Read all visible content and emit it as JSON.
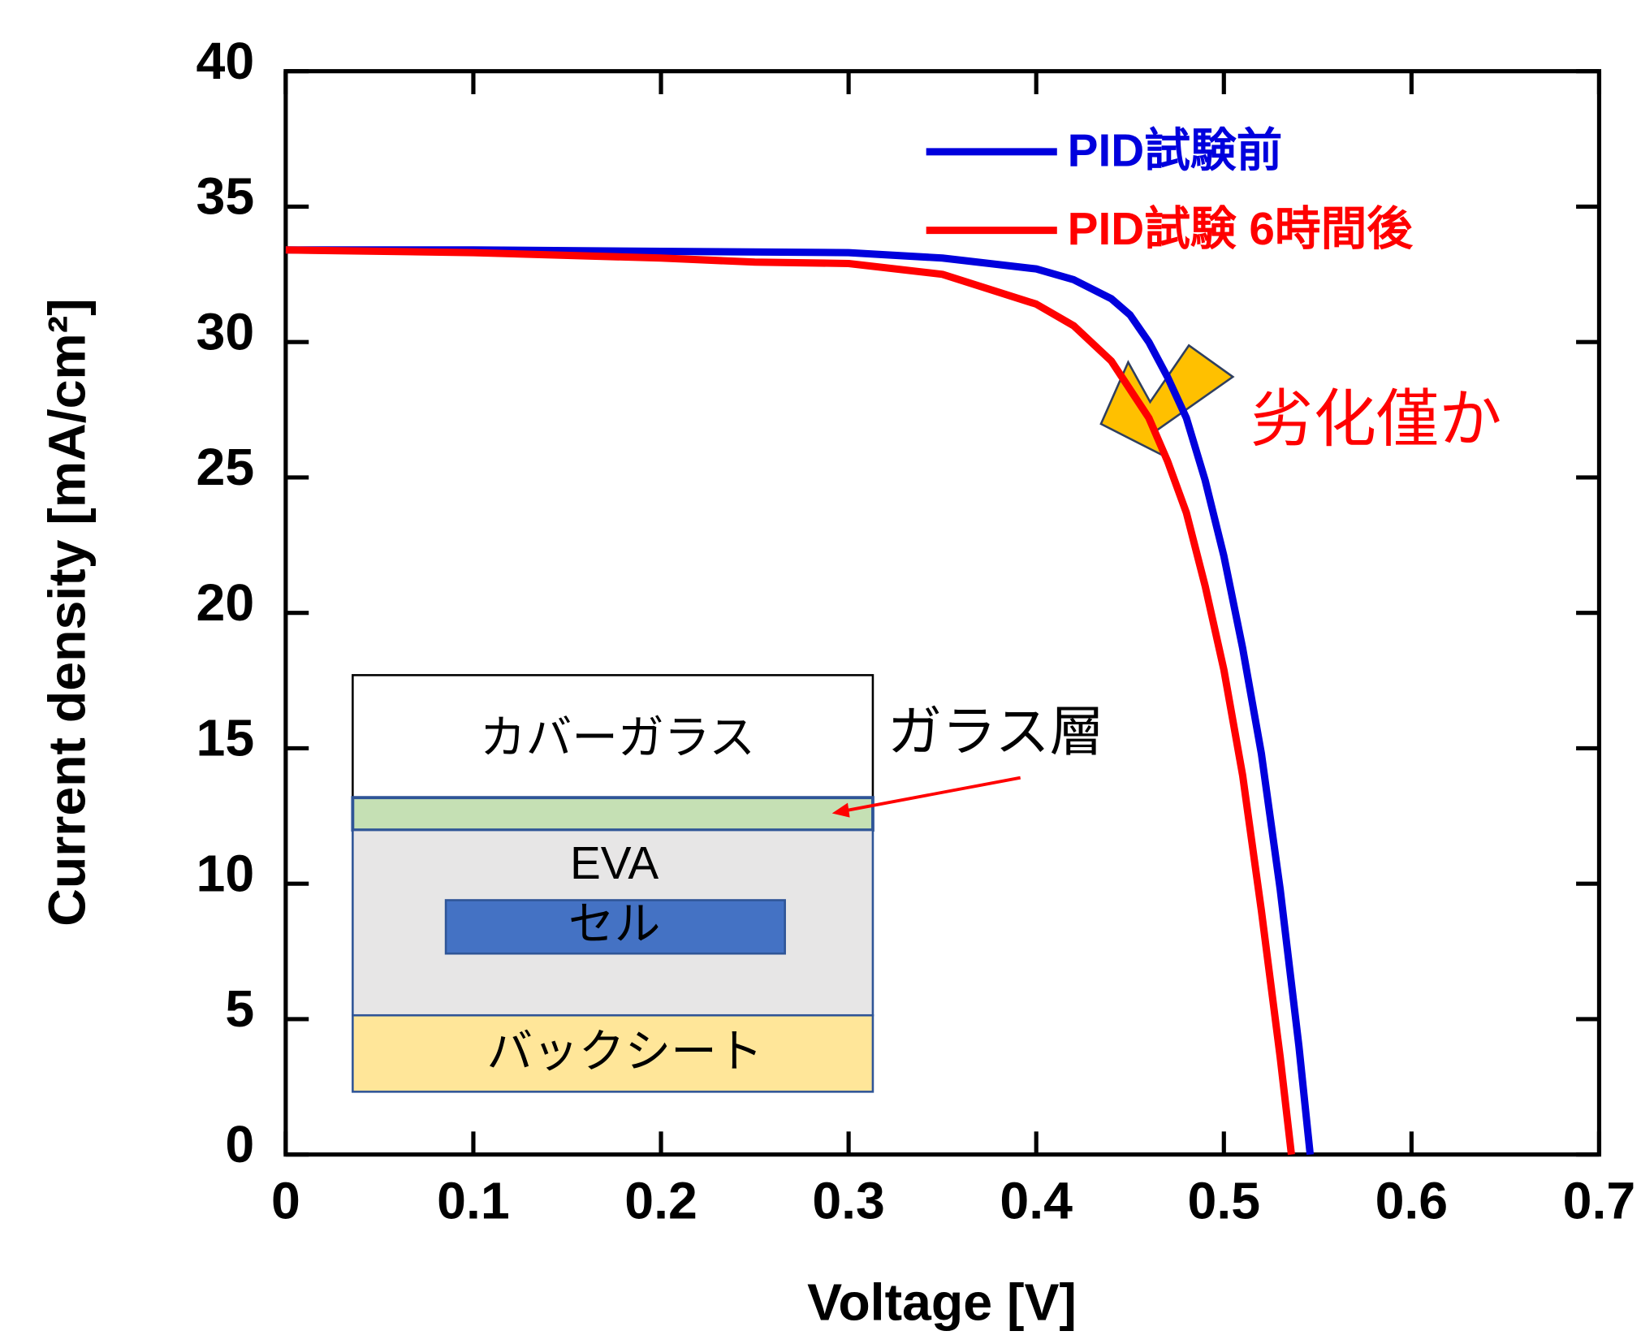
{
  "chart_data": {
    "type": "line",
    "xlabel": "Voltage [V]",
    "ylabel": "Current density [mA/cm²]",
    "xlim": [
      0,
      0.7
    ],
    "ylim": [
      0,
      40
    ],
    "xticks": [
      0,
      0.1,
      0.2,
      0.3,
      0.4,
      0.5,
      0.6,
      0.7
    ],
    "yticks": [
      0,
      5,
      10,
      15,
      20,
      25,
      30,
      35,
      40
    ],
    "series": [
      {
        "name": "PID試験前",
        "color": "#0000dd",
        "x": [
          0,
          0.1,
          0.2,
          0.3,
          0.35,
          0.4,
          0.42,
          0.44,
          0.45,
          0.46,
          0.47,
          0.48,
          0.49,
          0.5,
          0.51,
          0.52,
          0.53,
          0.54,
          0.546
        ],
        "values": [
          33.4,
          33.4,
          33.35,
          33.3,
          33.1,
          32.7,
          32.3,
          31.6,
          31.0,
          30.0,
          28.7,
          27.2,
          24.9,
          22.1,
          18.7,
          14.8,
          9.8,
          4.0,
          0
        ]
      },
      {
        "name": "PID試験 6時間後",
        "color": "#ff0000",
        "x": [
          0,
          0.1,
          0.2,
          0.25,
          0.3,
          0.35,
          0.4,
          0.42,
          0.44,
          0.46,
          0.47,
          0.48,
          0.49,
          0.5,
          0.51,
          0.52,
          0.53,
          0.536
        ],
        "values": [
          33.4,
          33.3,
          33.1,
          32.95,
          32.9,
          32.5,
          31.4,
          30.6,
          29.3,
          27.2,
          25.6,
          23.7,
          21.0,
          17.9,
          14.0,
          9.0,
          3.6,
          0
        ]
      }
    ],
    "annotation": "劣化僅か",
    "inset": {
      "layers": [
        "カバーガラス",
        "EVA",
        "セル",
        "バックシート"
      ],
      "label": "ガラス層"
    }
  }
}
